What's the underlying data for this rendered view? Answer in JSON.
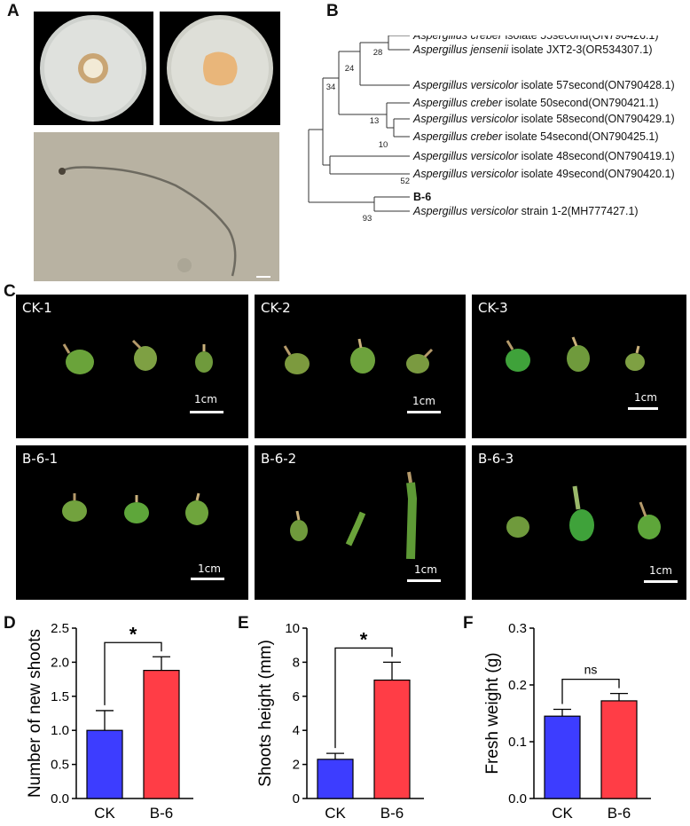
{
  "panels": {
    "A": "A",
    "B": "B",
    "C": "C",
    "D": "D",
    "E": "E",
    "F": "F"
  },
  "tree": {
    "taxa": [
      {
        "genus": "Aspergillus",
        "species": "creber",
        "rest": " isolate 55second(ON790426.1)"
      },
      {
        "genus": "Aspergillus",
        "species": "jensenii",
        "rest": " isolate JXT2-3(OR534307.1)"
      },
      {
        "genus": "Aspergillus",
        "species": "versicolor",
        "rest": " isolate 57second(ON790428.1)"
      },
      {
        "genus": "Aspergillus",
        "species": "creber",
        "rest": " isolate 50second(ON790421.1)"
      },
      {
        "genus": "Aspergillus",
        "species": "versicolor",
        "rest": " isolate 58second(ON790429.1)"
      },
      {
        "genus": "Aspergillus",
        "species": "creber",
        "rest": " isolate 54second(ON790425.1)"
      },
      {
        "genus": "Aspergillus",
        "species": "versicolor",
        "rest": " isolate 48second(ON790419.1)"
      },
      {
        "genus": "Aspergillus",
        "species": "versicolor",
        "rest": " isolate 49second(ON790420.1)"
      },
      {
        "genus": "",
        "species": "",
        "rest": "B-6",
        "highlight": "#e8141b"
      },
      {
        "genus": "Aspergillus",
        "species": "versicolor",
        "rest": " strain 1-2(MH777427.1)"
      }
    ],
    "bootstrap": [
      "28",
      "24",
      "34",
      "13",
      "10",
      "52",
      "93"
    ]
  },
  "photos": {
    "row1": [
      "CK-1",
      "CK-2",
      "CK-3"
    ],
    "row2": [
      "B-6-1",
      "B-6-2",
      "B-6-3"
    ],
    "scale_label": "1cm"
  },
  "chart_data": [
    {
      "type": "bar",
      "categories": [
        "CK",
        "B-6"
      ],
      "values": [
        1.0,
        1.88
      ],
      "errors": [
        0.29,
        0.2
      ],
      "ylabel": "Number of new shoots",
      "ylim": [
        0,
        2.5
      ],
      "yticks": [
        "0.0",
        "0.5",
        "1.0",
        "1.5",
        "2.0",
        "2.5"
      ],
      "significance": "*",
      "colors": [
        "#3d3dff",
        "#ff3d46"
      ]
    },
    {
      "type": "bar",
      "categories": [
        "CK",
        "B-6"
      ],
      "values": [
        2.3,
        6.95
      ],
      "errors": [
        0.35,
        1.05
      ],
      "ylabel": "Shoots height (mm)",
      "ylim": [
        0,
        10
      ],
      "yticks": [
        "0",
        "2",
        "4",
        "6",
        "8",
        "10"
      ],
      "significance": "*",
      "colors": [
        "#3d3dff",
        "#ff3d46"
      ]
    },
    {
      "type": "bar",
      "categories": [
        "CK",
        "B-6"
      ],
      "values": [
        0.145,
        0.172
      ],
      "errors": [
        0.012,
        0.013
      ],
      "ylabel": "Fresh weight (g)",
      "ylim": [
        0,
        0.3
      ],
      "yticks": [
        "0.0",
        "0.1",
        "0.2",
        "0.3"
      ],
      "significance": "ns",
      "colors": [
        "#3d3dff",
        "#ff3d46"
      ]
    }
  ]
}
